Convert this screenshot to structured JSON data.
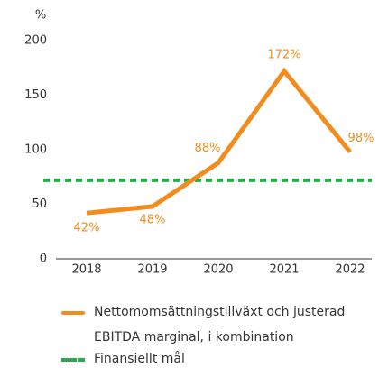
{
  "chart_data": {
    "type": "line",
    "y_unit_label": "%",
    "categories": [
      "2018",
      "2019",
      "2020",
      "2021",
      "2022"
    ],
    "series": [
      {
        "name": "Nettomomsättningstillväxt och justerad EBITDA marginal, i kombination",
        "color": "#f28c1e",
        "values": [
          42,
          48,
          88,
          172,
          98
        ],
        "value_labels": [
          "42%",
          "48%",
          "88%",
          "172%",
          "98%"
        ]
      }
    ],
    "reference": {
      "name": "Finansiellt mål",
      "value": 72,
      "color": "#1fb04a"
    },
    "ylim": [
      0,
      200
    ],
    "yticks": [
      0,
      50,
      100,
      150,
      200
    ],
    "grid": false
  }
}
